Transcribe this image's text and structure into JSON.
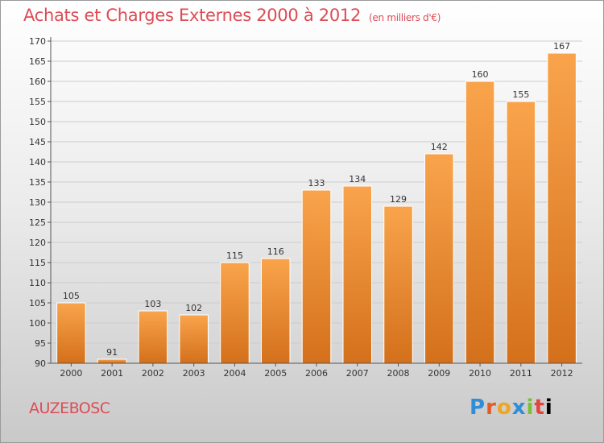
{
  "header": {
    "title": "Achats et Charges Externes 2000 à 2012",
    "unit": "(en milliers d'€)"
  },
  "footer": {
    "place": "AUZEBOSC",
    "brand": "Proxiti"
  },
  "colors": {
    "title": "#dd4c55",
    "bar_light": "#f9a44c",
    "bar_dark": "#d4701b",
    "grid": "#cccccc"
  },
  "chart_data": {
    "type": "bar",
    "title": "Achats et Charges Externes 2000 à 2012",
    "subtitle": "(en milliers d'€)",
    "xlabel": "",
    "ylabel": "",
    "categories": [
      "2000",
      "2001",
      "2002",
      "2003",
      "2004",
      "2005",
      "2006",
      "2007",
      "2008",
      "2009",
      "2010",
      "2011",
      "2012"
    ],
    "values": [
      105,
      91,
      103,
      102,
      115,
      116,
      133,
      134,
      129,
      142,
      160,
      155,
      167
    ],
    "ylim": [
      90,
      170
    ],
    "ytick_step": 5,
    "grid": true,
    "legend": "none"
  }
}
